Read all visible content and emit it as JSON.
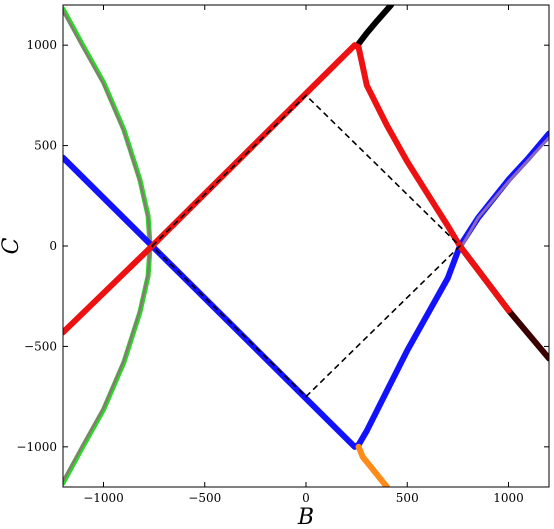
{
  "chart_data": {
    "type": "line",
    "title": "",
    "xlabel": "B",
    "ylabel": "C",
    "xlim": [
      -1200,
      1200
    ],
    "ylim": [
      -1200,
      1200
    ],
    "xticks": [
      -1000,
      -500,
      0,
      500,
      1000
    ],
    "yticks": [
      -1000,
      -500,
      0,
      500,
      1000
    ],
    "xtick_labels": [
      "−1000",
      "−500",
      "0",
      "500",
      "1000"
    ],
    "ytick_labels": [
      "−1000",
      "−500",
      "0",
      "500",
      "1000"
    ],
    "grid": false,
    "legend": "none",
    "series": [
      {
        "key": "green",
        "color": "#22dd22",
        "width": 5,
        "points": [
          [
            -1200,
            1180
          ],
          [
            -1100,
            995
          ],
          [
            -1000,
            815
          ],
          [
            -900,
            580
          ],
          [
            -820,
            330
          ],
          [
            -780,
            150
          ],
          [
            -770,
            0
          ],
          [
            -780,
            -150
          ],
          [
            -820,
            -330
          ],
          [
            -900,
            -580
          ],
          [
            -1000,
            -815
          ],
          [
            -1100,
            -995
          ],
          [
            -1200,
            -1180
          ]
        ]
      },
      {
        "key": "gray",
        "color": "#8a7a74",
        "width": 2.5,
        "points": [
          [
            -1200,
            1170
          ],
          [
            -1100,
            985
          ],
          [
            -1000,
            805
          ],
          [
            -900,
            570
          ],
          [
            -820,
            320
          ],
          [
            -780,
            140
          ],
          [
            -770,
            0
          ],
          [
            -780,
            -140
          ],
          [
            -820,
            -320
          ],
          [
            -900,
            -570
          ],
          [
            -1000,
            -805
          ],
          [
            -1100,
            -985
          ],
          [
            -1200,
            -1170
          ]
        ]
      },
      {
        "key": "blue",
        "color": "#1212ff",
        "width": 6,
        "points": [
          [
            -1200,
            440
          ],
          [
            -760,
            0
          ],
          [
            240,
            -1000
          ],
          [
            260,
            -990
          ],
          [
            300,
            -920
          ],
          [
            400,
            -720
          ],
          [
            500,
            -520
          ],
          [
            600,
            -340
          ],
          [
            700,
            -160
          ],
          [
            760,
            0
          ],
          [
            850,
            140
          ],
          [
            1000,
            330
          ],
          [
            1100,
            440
          ],
          [
            1200,
            560
          ]
        ]
      },
      {
        "key": "orange",
        "color": "#ff8c1a",
        "width": 6,
        "points": [
          [
            260,
            -1000
          ],
          [
            280,
            -1050
          ],
          [
            320,
            -1100
          ],
          [
            400,
            -1200
          ]
        ]
      },
      {
        "key": "purple",
        "color": "#8866bb",
        "width": 3,
        "points": [
          [
            770,
            0
          ],
          [
            850,
            140
          ],
          [
            1000,
            320
          ],
          [
            1100,
            430
          ],
          [
            1200,
            540
          ]
        ]
      },
      {
        "key": "black",
        "color": "#000000",
        "width": 6,
        "points": [
          [
            255,
            1000
          ],
          [
            270,
            1020
          ],
          [
            300,
            1060
          ],
          [
            350,
            1120
          ],
          [
            420,
            1200
          ]
        ]
      },
      {
        "key": "dark-red",
        "color": "#3a0000",
        "width": 6,
        "points": [
          [
            760,
            0
          ],
          [
            850,
            -120
          ],
          [
            1000,
            -320
          ],
          [
            1100,
            -440
          ],
          [
            1200,
            -560
          ]
        ]
      },
      {
        "key": "red",
        "color": "#ee1111",
        "width": 6,
        "points": [
          [
            -1200,
            -430
          ],
          [
            -760,
            0
          ],
          [
            240,
            1000
          ],
          [
            260,
            990
          ],
          [
            300,
            800
          ],
          [
            400,
            600
          ],
          [
            500,
            420
          ],
          [
            600,
            260
          ],
          [
            700,
            100
          ],
          [
            760,
            0
          ],
          [
            850,
            -120
          ],
          [
            1000,
            -320
          ]
        ]
      }
    ],
    "dashed_diamond": {
      "color": "#000000",
      "points": [
        [
          -760,
          0
        ],
        [
          0,
          750
        ],
        [
          760,
          0
        ],
        [
          0,
          -750
        ]
      ]
    }
  }
}
